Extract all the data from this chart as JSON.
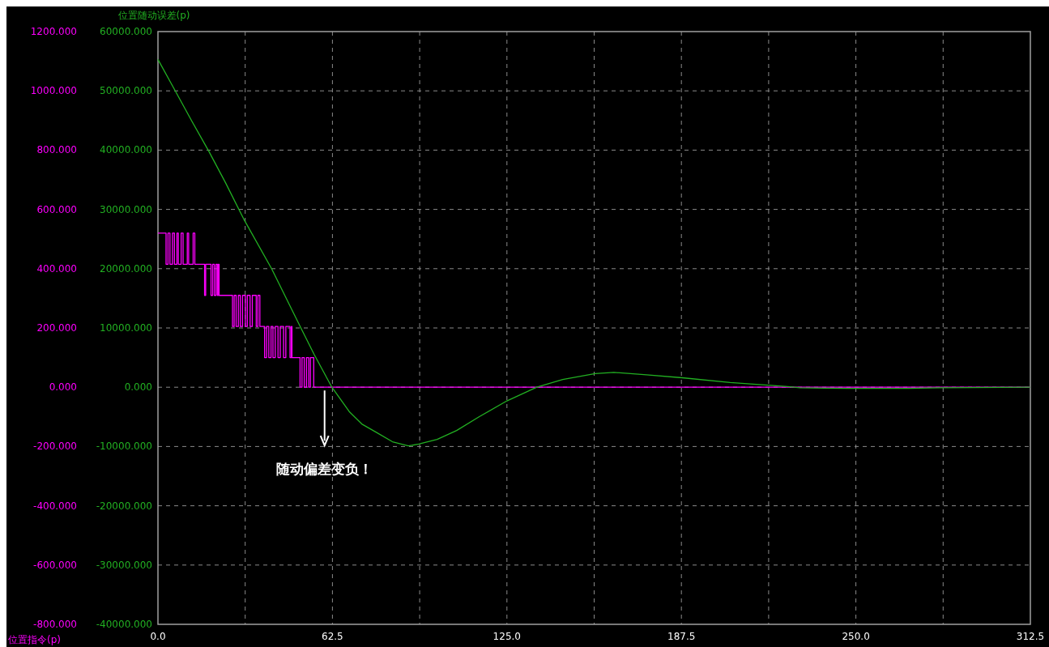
{
  "chart_data": {
    "type": "line",
    "ylabel": "位置指令(p)",
    "y2label": "位置随动误差(p)",
    "xlim": [
      0,
      312.5
    ],
    "xticks": [
      {
        "value": 0,
        "label": "0.0"
      },
      {
        "value": 31.25,
        "label": null
      },
      {
        "value": 62.5,
        "label": "62.5"
      },
      {
        "value": 93.75,
        "label": null
      },
      {
        "value": 125,
        "label": "125.0"
      },
      {
        "value": 156.25,
        "label": null
      },
      {
        "value": 187.5,
        "label": "187.5"
      },
      {
        "value": 218.75,
        "label": null
      },
      {
        "value": 250,
        "label": "250.0"
      },
      {
        "value": 281.25,
        "label": null
      },
      {
        "value": 312.5,
        "label": "312.5"
      }
    ],
    "ylim": [
      -800,
      1200
    ],
    "yticks": [
      {
        "value": -800,
        "label": "-800.000"
      },
      {
        "value": -600,
        "label": "-600.000"
      },
      {
        "value": -400,
        "label": "-400.000"
      },
      {
        "value": -200,
        "label": "-200.000"
      },
      {
        "value": 0,
        "label": "0.000"
      },
      {
        "value": 200,
        "label": "200.000"
      },
      {
        "value": 400,
        "label": "400.000"
      },
      {
        "value": 600,
        "label": "600.000"
      },
      {
        "value": 800,
        "label": "800.000"
      },
      {
        "value": 1000,
        "label": "1000.000"
      },
      {
        "value": 1200,
        "label": "1200.000"
      }
    ],
    "y2lim": [
      -40000,
      60000
    ],
    "y2ticks": [
      {
        "value": -40000,
        "label": "-40000.000"
      },
      {
        "value": -30000,
        "label": "-30000.000"
      },
      {
        "value": -20000,
        "label": "-20000.000"
      },
      {
        "value": -10000,
        "label": "-10000.000"
      },
      {
        "value": 0,
        "label": "0.000"
      },
      {
        "value": 10000,
        "label": "10000.000"
      },
      {
        "value": 20000,
        "label": "20000.000"
      },
      {
        "value": 30000,
        "label": "30000.000"
      },
      {
        "value": 40000,
        "label": "40000.000"
      },
      {
        "value": 50000,
        "label": "50000.000"
      },
      {
        "value": 60000,
        "label": "60000.000"
      }
    ],
    "grid": true,
    "line_style": "solid",
    "marker": "none",
    "series": [
      {
        "type": "step",
        "color": "#ff00ff",
        "x": [
          0,
          2.9,
          3.6,
          4.3,
          5.2,
          5.9,
          6.8,
          7.3,
          8.3,
          9.0,
          10.5,
          11.0,
          12.6,
          13.2,
          16.7,
          17.1,
          19.0,
          19.6,
          20.2,
          20.8,
          21.3,
          21.6,
          21.9,
          26.7,
          27.3,
          28.0,
          28.8,
          29.5,
          30.3,
          31.3,
          32.0,
          33.0,
          33.8,
          35.2,
          35.8,
          36.5,
          38.2,
          38.9,
          39.7,
          40.5,
          41.2,
          42.0,
          43.0,
          43.8,
          45.0,
          45.8,
          47.3,
          47.8,
          48.0,
          50.9,
          51.6,
          52.4,
          53.2,
          54.0,
          54.6,
          55.8,
          312.5
        ],
        "values": [
          520,
          415,
          520,
          415,
          520,
          415,
          520,
          415,
          520,
          415,
          520,
          415,
          520,
          415,
          310,
          415,
          310,
          415,
          310,
          415,
          310,
          415,
          310,
          205,
          310,
          205,
          310,
          205,
          310,
          205,
          310,
          205,
          310,
          205,
          310,
          205,
          100,
          205,
          100,
          205,
          100,
          205,
          100,
          205,
          100,
          205,
          100,
          205,
          100,
          0,
          100,
          0,
          100,
          0,
          100,
          0,
          0
        ]
      },
      {
        "axis": "y2",
        "color": "#22b022",
        "x": [
          0,
          6.2,
          12,
          18,
          24.2,
          30.7,
          40.7,
          51.2,
          56,
          62.3,
          68.5,
          73,
          78.2,
          84,
          89.7,
          93.4,
          100,
          107,
          115,
          125,
          135.7,
          145,
          156.6,
          163.3,
          175,
          187.8,
          205,
          225.5,
          230,
          247,
          269,
          280,
          312.5
        ],
        "values": [
          55300,
          50000,
          45000,
          40000,
          34500,
          28400,
          20000,
          10000,
          5500,
          0,
          -4100,
          -6200,
          -7600,
          -9200,
          -9900,
          -9600,
          -8800,
          -7300,
          -5000,
          -2300,
          0,
          1300,
          2300,
          2500,
          2100,
          1600,
          800,
          100,
          -100,
          -200,
          -200,
          -100,
          0
        ]
      }
    ],
    "annotations": [
      "随动偏差变负！"
    ]
  }
}
